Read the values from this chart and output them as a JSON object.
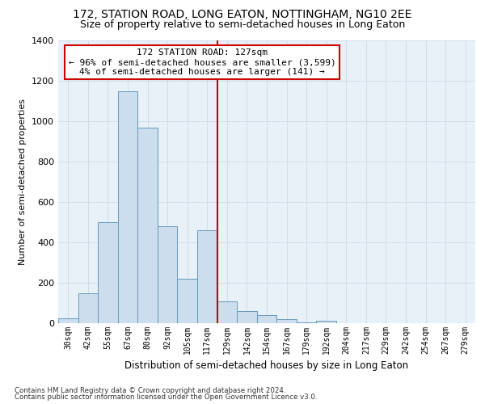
{
  "title": "172, STATION ROAD, LONG EATON, NOTTINGHAM, NG10 2EE",
  "subtitle": "Size of property relative to semi-detached houses in Long Eaton",
  "xlabel": "Distribution of semi-detached houses by size in Long Eaton",
  "ylabel": "Number of semi-detached properties",
  "footer_line1": "Contains HM Land Registry data © Crown copyright and database right 2024.",
  "footer_line2": "Contains public sector information licensed under the Open Government Licence v3.0.",
  "annotation_line1": "172 STATION ROAD: 127sqm",
  "annotation_line2": "← 96% of semi-detached houses are smaller (3,599)",
  "annotation_line3": "4% of semi-detached houses are larger (141) →",
  "bar_labels": [
    "30sqm",
    "42sqm",
    "55sqm",
    "67sqm",
    "80sqm",
    "92sqm",
    "105sqm",
    "117sqm",
    "129sqm",
    "142sqm",
    "154sqm",
    "167sqm",
    "179sqm",
    "192sqm",
    "204sqm",
    "217sqm",
    "229sqm",
    "242sqm",
    "254sqm",
    "267sqm",
    "279sqm"
  ],
  "bar_values": [
    25,
    150,
    500,
    1150,
    970,
    480,
    220,
    460,
    110,
    60,
    40,
    20,
    5,
    12,
    0,
    0,
    0,
    0,
    0,
    0,
    0
  ],
  "bar_color": "#ccdded",
  "bar_edge_color": "#6699bb",
  "vline_color": "#cc0000",
  "background_color": "#e8f0f8",
  "fig_background": "#ffffff",
  "ylim": [
    0,
    1400
  ],
  "yticks": [
    0,
    200,
    400,
    600,
    800,
    1000,
    1200,
    1400
  ],
  "grid_color": "#d0dde8",
  "title_fontsize": 10,
  "subtitle_fontsize": 9,
  "annotation_fontsize": 8
}
